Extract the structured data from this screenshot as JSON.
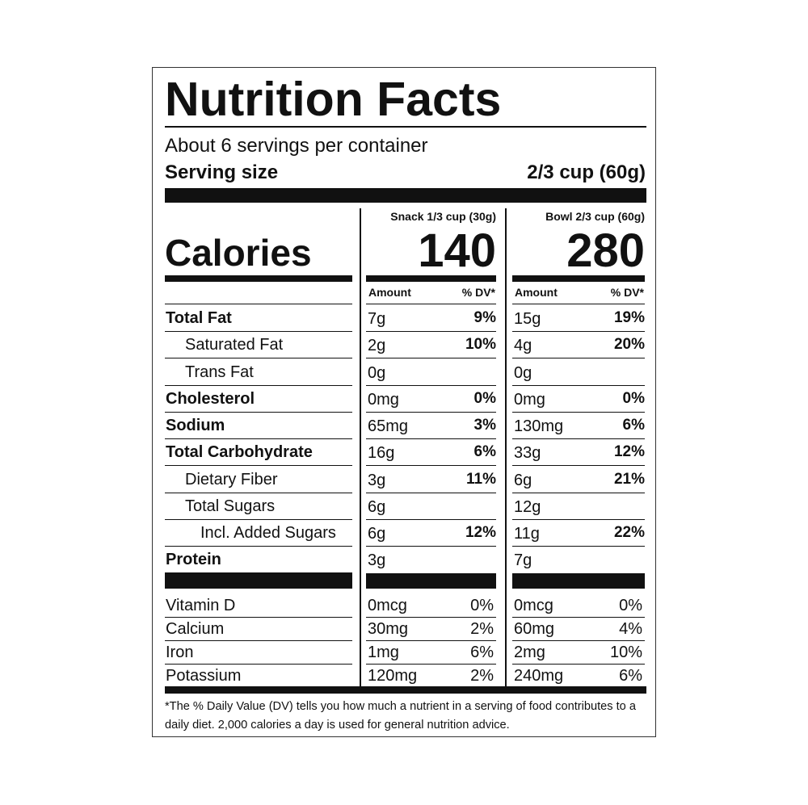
{
  "header": {
    "title": "Nutrition Facts",
    "servings": "About 6 servings per container",
    "serving_size_label": "Serving size",
    "serving_size": "2/3 cup (60g)"
  },
  "calories_label": "Calories",
  "columns": [
    {
      "header": "Snack 1/3 cup (30g)",
      "calories": "140",
      "amount_label": "Amount",
      "dv_label": "% DV*"
    },
    {
      "header": "Bowl 2/3 cup (60g)",
      "calories": "280",
      "amount_label": "Amount",
      "dv_label": "% DV*"
    }
  ],
  "nutrients": [
    {
      "name": "Total Fat",
      "level": 0,
      "values": [
        {
          "amount": "7g",
          "dv": "9%"
        },
        {
          "amount": "15g",
          "dv": "19%"
        }
      ]
    },
    {
      "name": "Saturated Fat",
      "level": 1,
      "values": [
        {
          "amount": "2g",
          "dv": "10%"
        },
        {
          "amount": "4g",
          "dv": "20%"
        }
      ]
    },
    {
      "name": "Trans Fat",
      "level": 1,
      "values": [
        {
          "amount": "0g"
        },
        {
          "amount": "0g"
        }
      ]
    },
    {
      "name": "Cholesterol",
      "level": 0,
      "values": [
        {
          "amount": "0mg",
          "dv": "0%"
        },
        {
          "amount": "0mg",
          "dv": "0%"
        }
      ]
    },
    {
      "name": "Sodium",
      "level": 0,
      "values": [
        {
          "amount": "65mg",
          "dv": "3%"
        },
        {
          "amount": "130mg",
          "dv": "6%"
        }
      ]
    },
    {
      "name": "Total Carbohydrate",
      "level": 0,
      "values": [
        {
          "amount": "16g",
          "dv": "6%"
        },
        {
          "amount": "33g",
          "dv": "12%"
        }
      ]
    },
    {
      "name": "Dietary Fiber",
      "level": 1,
      "values": [
        {
          "amount": "3g",
          "dv": "11%"
        },
        {
          "amount": "6g",
          "dv": "21%"
        }
      ]
    },
    {
      "name": "Total Sugars",
      "level": 1,
      "values": [
        {
          "amount": "6g"
        },
        {
          "amount": "12g"
        }
      ]
    },
    {
      "name": "Incl. Added Sugars",
      "level": 2,
      "values": [
        {
          "amount": "6g",
          "dv": "12%"
        },
        {
          "amount": "11g",
          "dv": "22%"
        }
      ]
    },
    {
      "name": "Protein",
      "level": 0,
      "values": [
        {
          "amount": "3g"
        },
        {
          "amount": "7g"
        }
      ]
    }
  ],
  "vitamins": [
    {
      "name": "Vitamin D",
      "values": [
        {
          "amount": "0mcg",
          "dv": "0%"
        },
        {
          "amount": "0mcg",
          "dv": "0%"
        }
      ]
    },
    {
      "name": "Calcium",
      "values": [
        {
          "amount": "30mg",
          "dv": "2%"
        },
        {
          "amount": "60mg",
          "dv": "4%"
        }
      ]
    },
    {
      "name": "Iron",
      "values": [
        {
          "amount": "1mg",
          "dv": "6%"
        },
        {
          "amount": "2mg",
          "dv": "10%"
        }
      ]
    },
    {
      "name": "Potassium",
      "values": [
        {
          "amount": "120mg",
          "dv": "2%"
        },
        {
          "amount": "240mg",
          "dv": "6%"
        }
      ]
    }
  ],
  "footnote": "*The % Daily Value (DV) tells you how much a nutrient in a serving of food contributes to a daily diet. 2,000 calories a day is used for general nutrition advice."
}
